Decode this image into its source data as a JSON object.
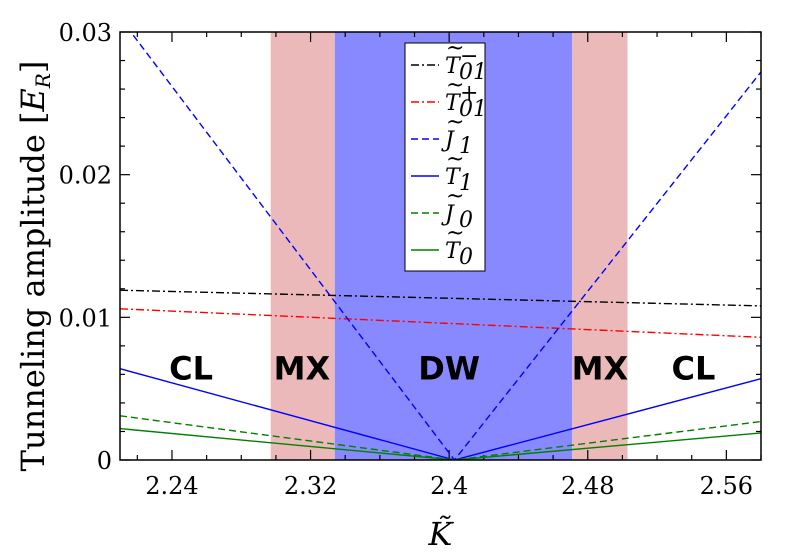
{
  "chart_data": {
    "type": "line",
    "ylabel": "Tunneling amplitude [E_R]",
    "ylabel_parts": {
      "text": "Tunneling amplitude [",
      "symbol": "E",
      "sub": "R",
      "close": "]"
    },
    "xlabel": "K̃",
    "xlim": [
      2.21,
      2.58
    ],
    "ylim": [
      0,
      0.03
    ],
    "xticks": [
      2.24,
      2.32,
      2.4,
      2.48,
      2.56
    ],
    "xtick_labels": [
      "2.24",
      "2.32",
      "2.4",
      "2.48",
      "2.56"
    ],
    "yticks": [
      0,
      0.01,
      0.02,
      0.03
    ],
    "ytick_labels": [
      "0",
      "0.01",
      "0.02",
      "0.03"
    ],
    "regions": [
      {
        "name": "CL",
        "from": 2.21,
        "to": 2.297,
        "color": "#ffffff"
      },
      {
        "name": "MX",
        "from": 2.297,
        "to": 2.334,
        "color": "#ebb9b9"
      },
      {
        "name": "DW",
        "from": 2.334,
        "to": 2.471,
        "color": "#8888ff"
      },
      {
        "name": "MX",
        "from": 2.471,
        "to": 2.503,
        "color": "#ebb9b9"
      },
      {
        "name": "CL",
        "from": 2.503,
        "to": 2.58,
        "color": "#ffffff"
      }
    ],
    "region_labels": [
      {
        "text": "CL",
        "x": 2.251
      },
      {
        "text": "MX",
        "x": 2.315
      },
      {
        "text": "DW",
        "x": 2.4
      },
      {
        "text": "MX",
        "x": 2.487
      },
      {
        "text": "CL",
        "x": 2.541
      }
    ],
    "region_label_y": 0.0065,
    "series": [
      {
        "name": "T̃01−",
        "base": "T",
        "sup": "−",
        "sub": "01",
        "color": "#000000",
        "dash": "dashdot",
        "x": [
          2.21,
          2.58
        ],
        "y": [
          0.0119,
          0.0108
        ]
      },
      {
        "name": "T̃01+",
        "base": "T",
        "sup": "+",
        "sub": "01",
        "color": "#ff0000",
        "dash": "dashdot",
        "x": [
          2.21,
          2.58
        ],
        "y": [
          0.0106,
          0.0086
        ]
      },
      {
        "name": "J̃1",
        "base": "J",
        "sup": "",
        "sub": "1",
        "color": "#0000ff",
        "dash": "dashed",
        "x": [
          2.21,
          2.403,
          2.58
        ],
        "y": [
          0.031,
          0.0,
          0.0272
        ]
      },
      {
        "name": "T̃1",
        "base": "T",
        "sup": "",
        "sub": "1",
        "color": "#0000ff",
        "dash": "solid",
        "x": [
          2.21,
          2.403,
          2.58
        ],
        "y": [
          0.0064,
          0.0,
          0.0057
        ]
      },
      {
        "name": "J̃0",
        "base": "J",
        "sup": "",
        "sub": "0",
        "color": "#008000",
        "dash": "dashed",
        "x": [
          2.21,
          2.403,
          2.58
        ],
        "y": [
          0.0031,
          0.0,
          0.0027
        ]
      },
      {
        "name": "T̃0",
        "base": "T",
        "sup": "",
        "sub": "0",
        "color": "#008000",
        "dash": "solid",
        "x": [
          2.21,
          2.403,
          2.58
        ],
        "y": [
          0.0022,
          0.0,
          0.0019
        ]
      }
    ],
    "legend": {
      "position": "top-center"
    }
  }
}
